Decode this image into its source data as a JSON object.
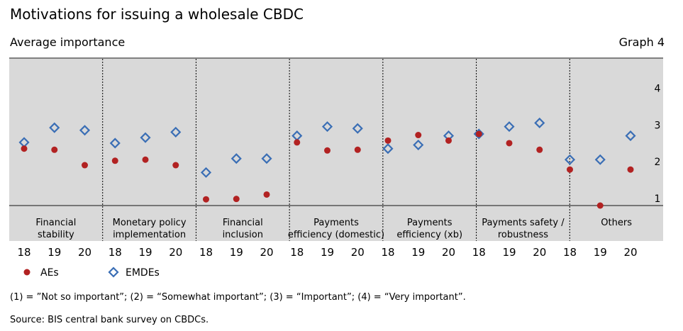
{
  "header": {
    "title": "Motivations for issuing a wholesale CBDC",
    "subtitle": "Average importance",
    "graph_number": "Graph 4"
  },
  "footer": {
    "footnote": "(1) = ”Not so important”; (2) = “Somewhat important”; (3) = “Important”; (4) = “Very important”.",
    "source": "Source: BIS central bank survey on CBDCs."
  },
  "colors": {
    "background": "#d9d9d9",
    "ae": "#b22222",
    "emde": "#3a6eb5"
  },
  "chart_data": {
    "type": "scatter",
    "groups": [
      {
        "label_lines": [
          "Financial",
          "stability"
        ],
        "years": [
          "18",
          "19",
          "20"
        ]
      },
      {
        "label_lines": [
          "Monetary policy",
          "implementation"
        ],
        "years": [
          "18",
          "19",
          "20"
        ]
      },
      {
        "label_lines": [
          "Financial",
          "inclusion"
        ],
        "years": [
          "18",
          "19",
          "20"
        ]
      },
      {
        "label_lines": [
          "Payments",
          "efficiency (domestic)"
        ],
        "years": [
          "18",
          "19",
          "20"
        ]
      },
      {
        "label_lines": [
          "Payments",
          "efficiency (xb)"
        ],
        "years": [
          "18",
          "19",
          "20"
        ]
      },
      {
        "label_lines": [
          "Payments safety /",
          "robustness"
        ],
        "years": [
          "18",
          "19",
          "20"
        ]
      },
      {
        "label_lines": [
          "Others"
        ],
        "years": [
          "18",
          "19",
          "20"
        ]
      }
    ],
    "series": [
      {
        "name": "AEs",
        "marker": "circle",
        "values": [
          2.55,
          2.52,
          2.1,
          2.22,
          2.25,
          2.1,
          1.17,
          1.18,
          1.3,
          2.72,
          2.5,
          2.52,
          2.77,
          2.92,
          2.77,
          2.95,
          2.7,
          2.52,
          1.98,
          1.0,
          1.98
        ]
      },
      {
        "name": "EMDEs",
        "marker": "diamond",
        "values": [
          2.72,
          3.12,
          3.05,
          2.7,
          2.85,
          3.0,
          1.9,
          2.28,
          2.28,
          2.9,
          3.15,
          3.1,
          2.55,
          2.65,
          2.9,
          2.95,
          3.15,
          3.25,
          2.25,
          2.25,
          2.9
        ]
      }
    ],
    "yticks": [
      "1",
      "2",
      "3",
      "4"
    ],
    "ylim": [
      0,
      5
    ],
    "grid": false,
    "legend_position": "bottom-left"
  }
}
